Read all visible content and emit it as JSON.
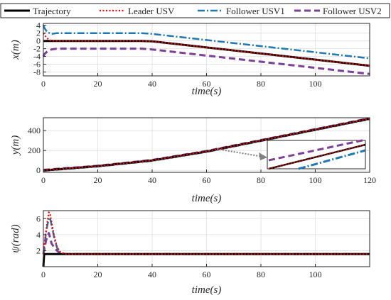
{
  "legend": {
    "items": [
      {
        "label": "Trajectory",
        "color": "#000000",
        "dash": "solid"
      },
      {
        "label": "Leader USV",
        "color": "#ff0000",
        "dash": "dotted"
      },
      {
        "label": "Follower USV1",
        "color": "#1f77b4",
        "dash": "dashdot"
      },
      {
        "label": "Follower USV2",
        "color": "#7e3f98",
        "dash": "dashed"
      }
    ]
  },
  "chart_data": [
    {
      "type": "line",
      "xlabel": "time(s)",
      "ylabel": "x(m)",
      "xlim": [
        0,
        120
      ],
      "ylim": [
        -9,
        4.5
      ],
      "xticks": [
        0,
        20,
        40,
        60,
        80,
        100
      ],
      "yticks": [
        4,
        2,
        0,
        -2,
        -4,
        -6,
        -8
      ],
      "grid": true,
      "series": [
        {
          "name": "Trajectory",
          "x": [
            0,
            36,
            40,
            120
          ],
          "y": [
            0,
            0,
            -0.1,
            -6.4
          ]
        },
        {
          "name": "Leader USV",
          "x": [
            0,
            1,
            2,
            3,
            36,
            40,
            120
          ],
          "y": [
            2,
            1,
            0.3,
            0,
            0,
            -0.1,
            -6.4
          ]
        },
        {
          "name": "Follower USV1",
          "x": [
            0,
            0.5,
            1.5,
            3,
            5,
            36,
            40,
            120
          ],
          "y": [
            4,
            3.2,
            2.2,
            1.8,
            2,
            2,
            1.8,
            -4.5
          ]
        },
        {
          "name": "Follower USV2",
          "x": [
            0,
            0.5,
            1.5,
            3,
            5,
            36,
            40,
            120
          ],
          "y": [
            -4,
            -3.3,
            -2.7,
            -2.2,
            -2,
            -2,
            -2.2,
            -8.5
          ]
        }
      ]
    },
    {
      "type": "line",
      "xlabel": "time(s)",
      "ylabel": "y(m)",
      "xlim": [
        0,
        120
      ],
      "ylim": [
        -20,
        530
      ],
      "xticks": [
        0,
        20,
        40,
        60,
        80,
        100,
        120
      ],
      "yticks": [
        0,
        200,
        400
      ],
      "grid": true,
      "series": [
        {
          "name": "Trajectory",
          "x": [
            0,
            20,
            40,
            60,
            80,
            100,
            120
          ],
          "y": [
            0,
            42,
            100,
            190,
            300,
            410,
            520
          ]
        },
        {
          "name": "Leader USV",
          "x": [
            0,
            20,
            40,
            60,
            80,
            100,
            120
          ],
          "y": [
            0,
            42,
            100,
            190,
            300,
            410,
            520
          ]
        },
        {
          "name": "Follower USV1",
          "x": [
            0,
            20,
            40,
            60,
            80,
            100,
            120
          ],
          "y": [
            -5,
            38,
            95,
            185,
            295,
            405,
            515
          ]
        },
        {
          "name": "Follower USV2",
          "x": [
            0,
            20,
            40,
            60,
            80,
            100,
            120
          ],
          "y": [
            5,
            46,
            105,
            195,
            305,
            415,
            525
          ]
        }
      ]
    },
    {
      "type": "line",
      "xlabel": "time(s)",
      "ylabel": "ψ(rad)",
      "xlim": [
        0,
        120
      ],
      "ylim": [
        0,
        7
      ],
      "xticks": [
        0,
        20,
        40,
        60,
        80,
        100
      ],
      "yticks": [
        2,
        4,
        6
      ],
      "grid": true,
      "series": [
        {
          "name": "Trajectory",
          "x": [
            0,
            0.3,
            120
          ],
          "y": [
            0,
            1.57,
            1.57
          ]
        },
        {
          "name": "Leader USV",
          "x": [
            0,
            1,
            2,
            2.5,
            3,
            4,
            5,
            6,
            8,
            120
          ],
          "y": [
            1.57,
            4.5,
            6.8,
            6.5,
            5.5,
            3.8,
            2.5,
            1.9,
            1.57,
            1.57
          ]
        },
        {
          "name": "Follower USV1",
          "x": [
            0,
            1,
            2,
            2.5,
            3,
            4,
            5,
            6,
            8,
            120
          ],
          "y": [
            1.57,
            4.3,
            6.1,
            6.0,
            5.2,
            3.6,
            2.4,
            1.8,
            1.57,
            1.57
          ]
        },
        {
          "name": "Follower USV2",
          "x": [
            0,
            1,
            2,
            2.5,
            3,
            4,
            5,
            6,
            8,
            120
          ],
          "y": [
            1.57,
            3.3,
            4.2,
            3.6,
            2.9,
            2.4,
            2.0,
            1.7,
            1.57,
            1.57
          ]
        }
      ]
    }
  ]
}
